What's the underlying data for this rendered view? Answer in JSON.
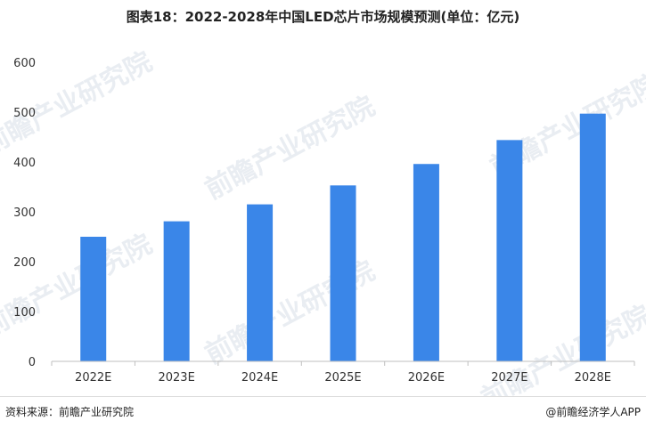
{
  "title": "图表18：2022-2028年中国LED芯片市场规模预测(单位：亿元)",
  "source": "资料来源：前瞻产业研究院",
  "credit": "@前瞻经济学人APP",
  "watermark": "前瞻产业研究院",
  "colors": {
    "bar": "#3a86e8",
    "axis": "#bfbfbf",
    "text": "#333333"
  },
  "chart_data": {
    "type": "bar",
    "title": "图表18：2022-2028年中国LED芯片市场规模预测(单位：亿元)",
    "categories": [
      "2022E",
      "2023E",
      "2024E",
      "2025E",
      "2026E",
      "2027E",
      "2028E"
    ],
    "values": [
      250,
      281,
      315,
      353,
      396,
      444,
      497
    ],
    "yticks": [
      0,
      100,
      200,
      300,
      400,
      500,
      600
    ],
    "ylim": [
      0,
      600
    ],
    "grid": false,
    "xlabel": "",
    "ylabel": ""
  }
}
